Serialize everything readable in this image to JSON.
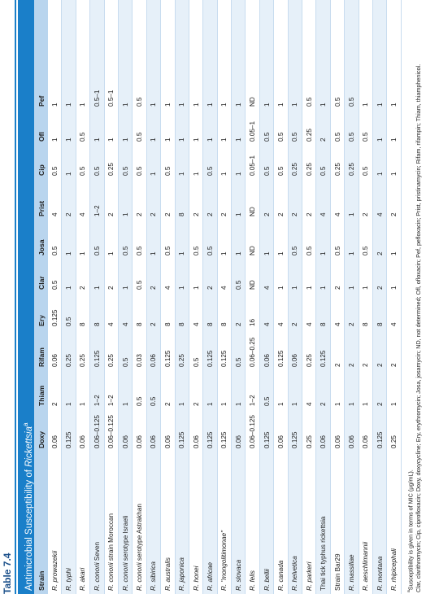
{
  "table_label": "Table 7.4",
  "title": {
    "text": "Antimicrobial Susceptibility of ",
    "italic": "Rickettsia",
    "marker": "a"
  },
  "table": {
    "headers": [
      "Strain",
      "Doxy",
      "Thiam",
      "Rifam",
      "Ery",
      "Clar",
      "Josa",
      "Prist",
      "Cip",
      "Ofl",
      "Pef"
    ],
    "rows": [
      [
        "R. prowazekii",
        "0.06",
        "2",
        "0.06",
        "0.125",
        "0.5",
        "0.5",
        "4",
        "0.5",
        "1",
        "1"
      ],
      [
        "R. typhi",
        "0.125",
        "1",
        "0.25",
        "0.5",
        "1",
        "1",
        "2",
        "1",
        "1",
        "1"
      ],
      [
        "R. akari",
        "0.06",
        "1",
        "0.25",
        "8",
        "2",
        "1",
        "4",
        "0.5",
        "0.5",
        "1"
      ],
      [
        "R. conorii Seven",
        "0.06–0.125",
        "1–2",
        "0.125",
        "8",
        "1",
        "0.5",
        "1–2",
        "0.5",
        "1",
        "0.5–1"
      ],
      [
        "R. conorii strain Moroccan",
        "0.06–0.125",
        "1–2",
        "0.25",
        "4",
        "2",
        "1",
        "2",
        "0.25",
        "1",
        "0.5–1"
      ],
      [
        "R. conorii serotype Israeli",
        "0.06",
        "1",
        "0.5",
        "4",
        "1",
        "0.5",
        "1",
        "0.5",
        "1",
        "1"
      ],
      [
        "R. conorii serotype Astrakhan",
        "0.06",
        "0.5",
        "0.03",
        "8",
        "0.5",
        "0.5",
        "2",
        "0.5",
        "0.5",
        "0.5"
      ],
      [
        "R. sibirica",
        "0.06",
        "0.5",
        "0.06",
        "2",
        "2",
        "1",
        "2",
        "1",
        "1",
        "1"
      ],
      [
        "R. australis",
        "0.06",
        "2",
        "0.125",
        "8",
        "4",
        "0.5",
        "2",
        "0.5",
        "1",
        "1"
      ],
      [
        "R. japonica",
        "0.125",
        "1",
        "0.25",
        "8",
        "1",
        "1",
        "8",
        "1",
        "1",
        "1"
      ],
      [
        "R. honei",
        "0.06",
        "2",
        "0.5",
        "4",
        "1",
        "0.5",
        "2",
        "1",
        "1",
        "1"
      ],
      [
        "R. africae",
        "0.125",
        "1",
        "0.125",
        "8",
        "2",
        "0.5",
        "2",
        "0.5",
        "1",
        "1"
      ],
      [
        "R. \"mongolitimonae\"",
        "0.125",
        "1",
        "0.125",
        "8",
        "4",
        "1",
        "2",
        "1",
        "1",
        "1"
      ],
      [
        "R. slovaca",
        "0.06",
        "1",
        "0.5",
        "2",
        "0.5",
        "1",
        "1",
        "1",
        "1",
        "1"
      ],
      [
        "R. felis",
        "0.06–0.125",
        "1–2",
        "0.06–0.25",
        "16",
        "ND",
        "ND",
        "ND",
        "0.05–1",
        "0.05–1",
        "ND"
      ],
      [
        "R. bellii",
        "0.125",
        "0.5",
        "0.06",
        "4",
        "4",
        "1",
        "2",
        "0.5",
        "0.5",
        "1"
      ],
      [
        "R. canada",
        "0.06",
        "1",
        "0.125",
        "4",
        "1",
        "1",
        "2",
        "0.5",
        "0.5",
        "1"
      ],
      [
        "R. helvetica",
        "0.125",
        "1",
        "0.06",
        "2",
        "1",
        "0.5",
        "2",
        "0.25",
        "0.5",
        "1"
      ],
      [
        "R. parkeri",
        "0.25",
        "4",
        "0.25",
        "4",
        "1",
        "0.5",
        "2",
        "0.25",
        "0.25",
        "0.5"
      ],
      [
        "Thai tick typhus rickettsia",
        "0.06",
        "2",
        "0.125",
        "8",
        "1",
        "1",
        "4",
        "0.5",
        "2",
        "1"
      ],
      [
        "Strain Bar29",
        "0.06",
        "1",
        "2",
        "4",
        "2",
        "0.5",
        "4",
        "0.25",
        "0.5",
        "0.5"
      ],
      [
        "R. massiliae",
        "0.06",
        "1",
        "2",
        "2",
        "1",
        "1",
        "1",
        "0.25",
        "0.5",
        "0.5"
      ],
      [
        "R. aeschlimannii",
        "0.06",
        "1",
        "2",
        "8",
        "1",
        "0.5",
        "2",
        "0.5",
        "0.5",
        "1"
      ],
      [
        "R. montana",
        "0.125",
        "2",
        "2",
        "8",
        "2",
        "2",
        "4",
        "1",
        "1",
        "1"
      ],
      [
        "R. rhipicephali",
        "0.25",
        "1",
        "2",
        "4",
        "1",
        "1",
        "2",
        "1",
        "1",
        "1"
      ]
    ]
  },
  "footnotes": [
    {
      "marker": "a",
      "text": "Susceptibility is given in terms of MIC (µg/mL)."
    },
    {
      "text": "Clar, clarithromycin; Cip, ciprofloxacin; Doxy, doxycycline; Ery, erythromycin; Josa, josamycin; ND, not determined; Ofl, ofloxacin; Pef, pefloxacin; Prist, pristinamycin; Rifam, rifampin; Thiam, thiamphenicol."
    }
  ]
}
